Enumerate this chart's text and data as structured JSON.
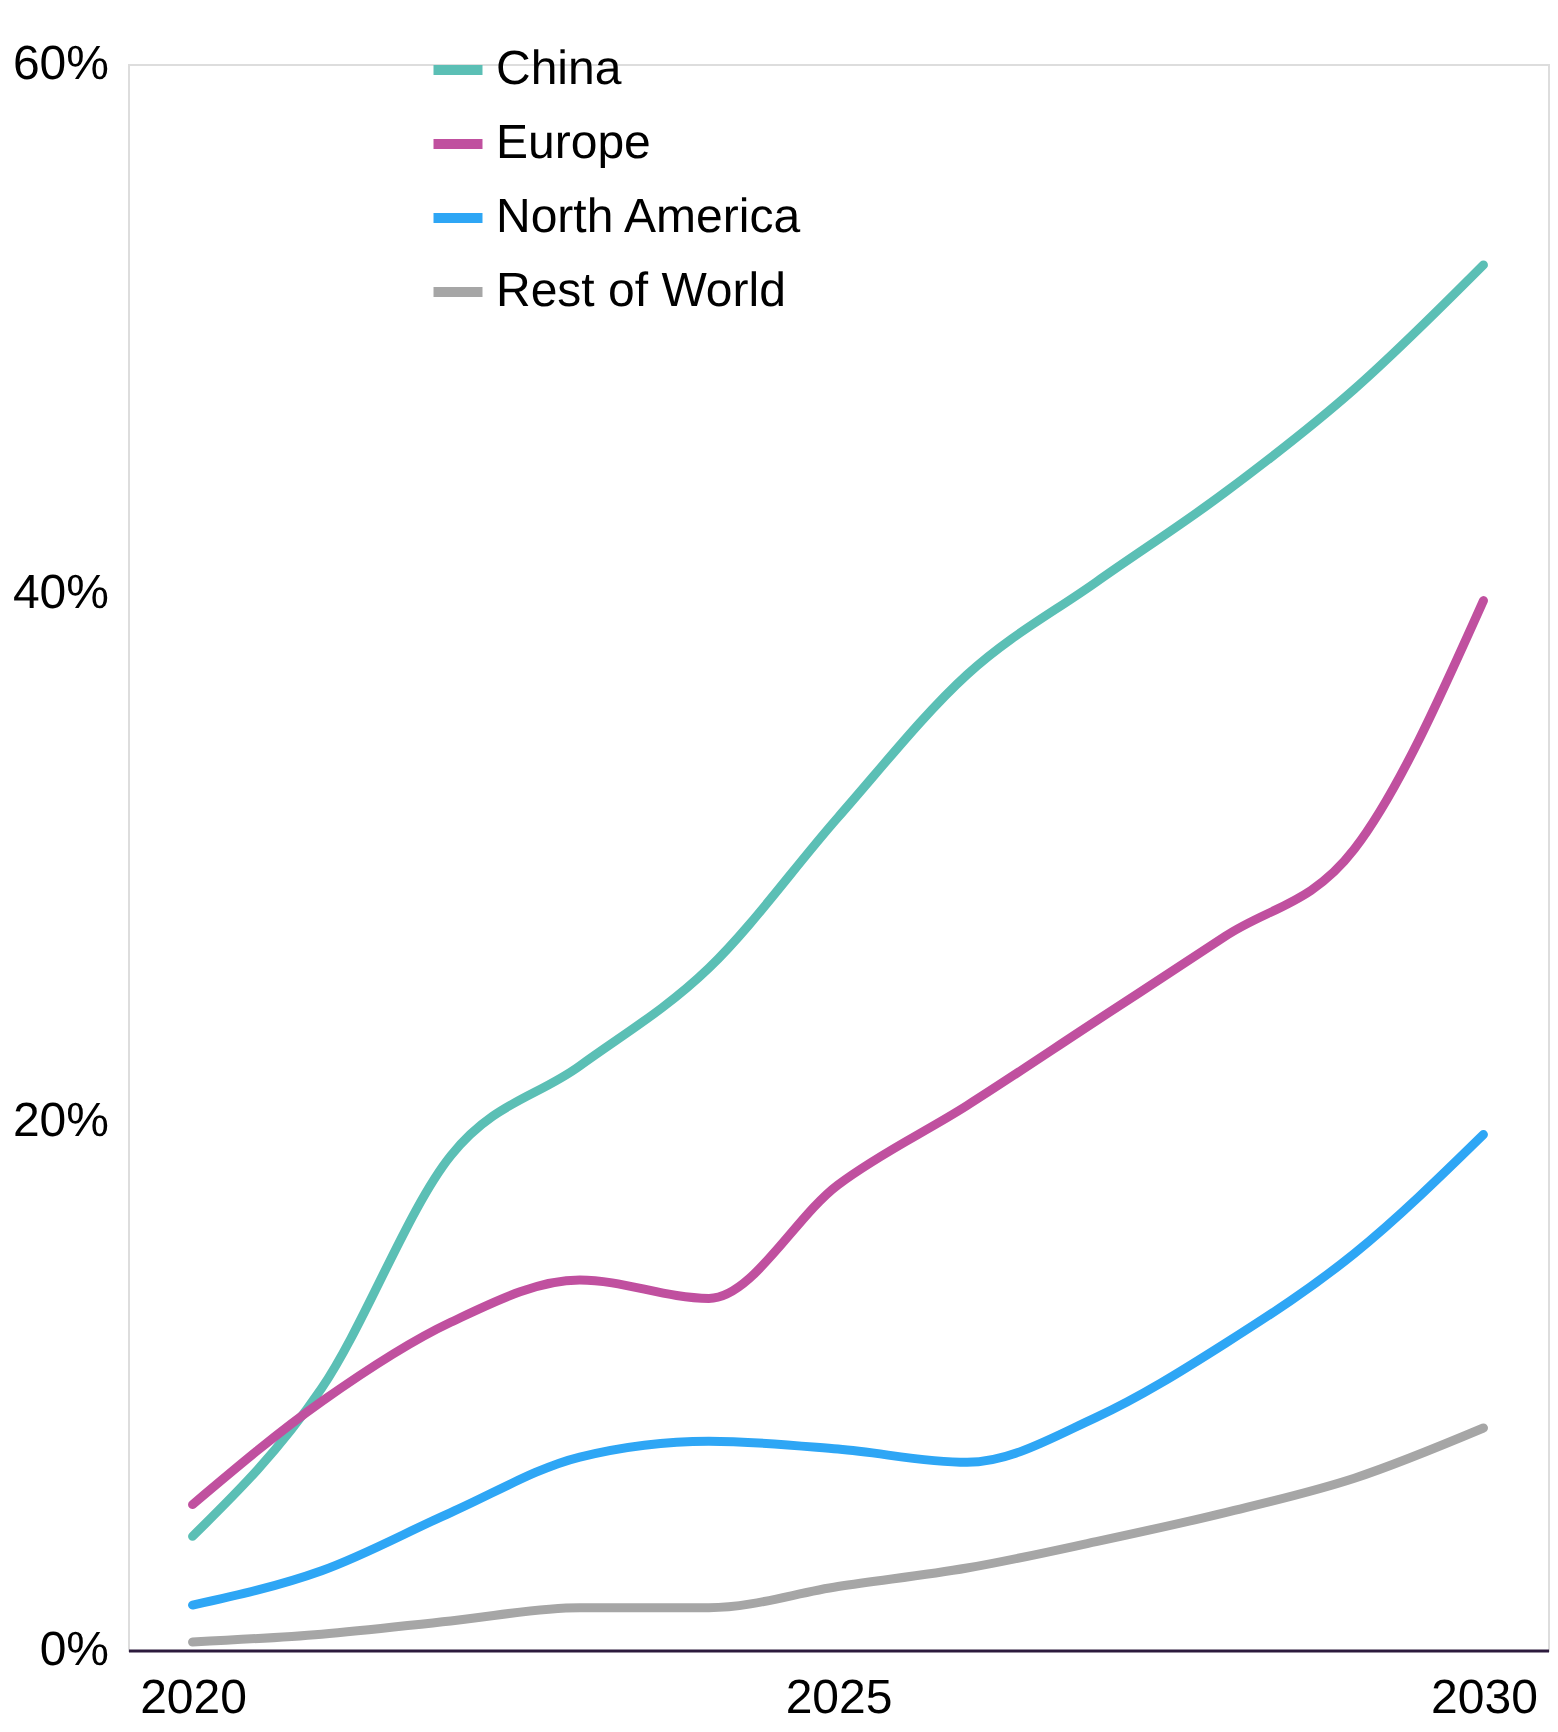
{
  "chart_data": {
    "type": "line",
    "x": [
      2020,
      2021,
      2022,
      2023,
      2024,
      2025,
      2026,
      2027,
      2028,
      2029,
      2030
    ],
    "series": [
      {
        "name": "China",
        "color": "#5bbfb5",
        "values": [
          4.3,
          9.9,
          18.7,
          22.1,
          25.8,
          31.5,
          36.9,
          40.4,
          43.8,
          47.7,
          52.4
        ]
      },
      {
        "name": "Europe",
        "color": "#c0509f",
        "values": [
          5.5,
          9.4,
          12.4,
          14.0,
          13.3,
          17.6,
          20.6,
          23.8,
          27.0,
          30.3,
          39.7
        ]
      },
      {
        "name": "North America",
        "color": "#2ea6f5",
        "values": [
          1.7,
          3.0,
          5.2,
          7.3,
          7.9,
          7.6,
          7.1,
          8.8,
          11.6,
          15.0,
          19.5
        ]
      },
      {
        "name": "Rest of World",
        "color": "#a6a6a6",
        "values": [
          0.3,
          0.6,
          1.1,
          1.6,
          1.6,
          2.4,
          3.1,
          4.1,
          5.2,
          6.5,
          8.4
        ]
      }
    ],
    "xlim": [
      2019.5,
      2030.5
    ],
    "xticks": [
      2020,
      2025,
      2030
    ],
    "ylim": [
      0,
      60
    ],
    "yticks": [
      {
        "value": 0,
        "label": "0%"
      },
      {
        "value": 20,
        "label": "20%"
      },
      {
        "value": 40,
        "label": "40%"
      },
      {
        "value": 60,
        "label": "60%"
      }
    ],
    "grid": false,
    "legend": "top left",
    "marker": "none",
    "line_style": "solid"
  }
}
